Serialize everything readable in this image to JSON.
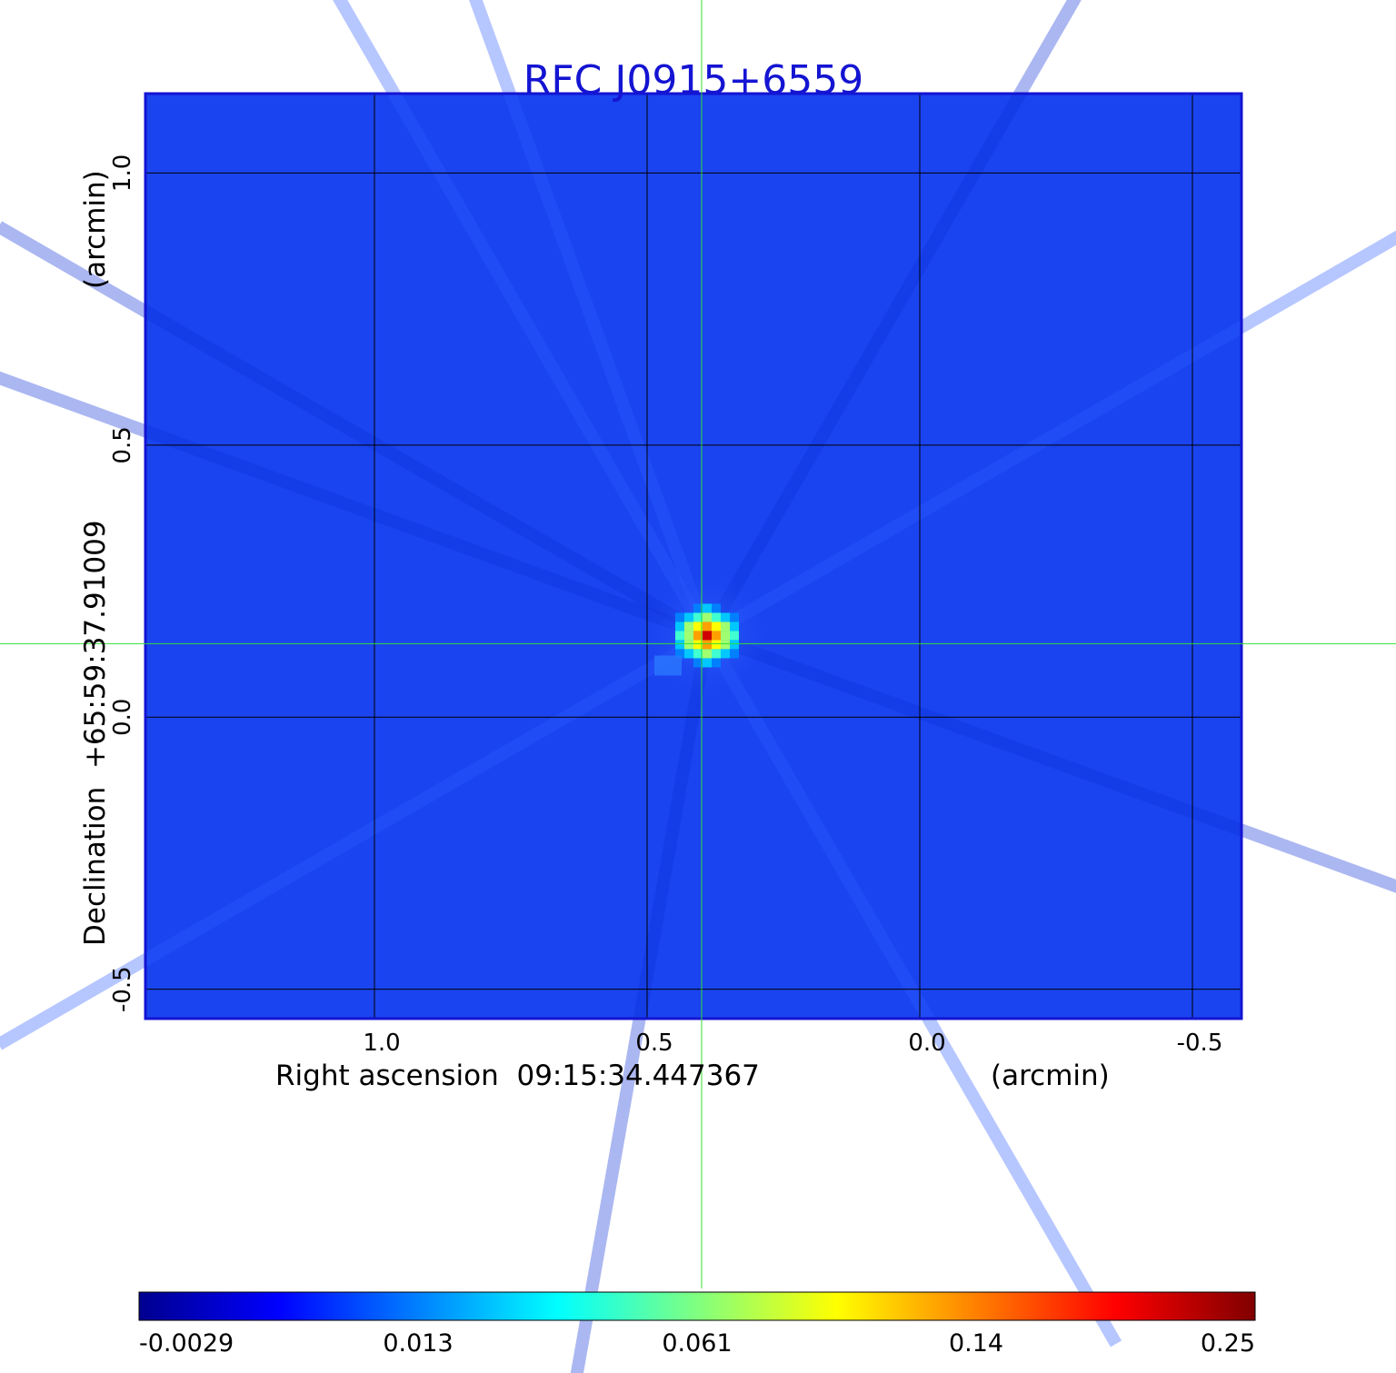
{
  "chart_data": {
    "type": "heatmap",
    "title": "RFC J0915+6559",
    "xlabel": "Right ascension  09:15:34.447367",
    "xunit": "(arcmin)",
    "ylabel": "Declination  +65:59:37.91009",
    "yunit": "(arcmin)",
    "x_ticks": [
      "1.0",
      "0.5",
      "0.0",
      "-0.5"
    ],
    "x_tick_values": [
      1.0,
      0.5,
      0.0,
      -0.5
    ],
    "y_ticks": [
      "1.0",
      "0.5",
      "0.0",
      "-0.5"
    ],
    "y_tick_values": [
      1.0,
      0.5,
      0.0,
      -0.5
    ],
    "xlim": [
      1.42,
      -0.59
    ],
    "ylim": [
      -0.554,
      1.146
    ],
    "grid": true,
    "crosshair": {
      "x": 0.4,
      "y": 0.135
    },
    "source": {
      "x": 0.39,
      "y": 0.15,
      "peak": 0.25
    },
    "colorbar": {
      "ticks": [
        "-0.0029",
        "0.013",
        "0.061",
        "0.14",
        "0.25"
      ],
      "tick_values": [
        -0.0029,
        0.013,
        0.061,
        0.14,
        0.25
      ],
      "colors": [
        "#00008f",
        "#0000ff",
        "#0080ff",
        "#00ffff",
        "#80ff80",
        "#ffff00",
        "#ff8000",
        "#ff0000",
        "#800000"
      ]
    },
    "colors": {
      "background": "#1a44f0",
      "frame": "#1414d2",
      "grid": "#000000",
      "crosshair": "#33dd33"
    }
  }
}
